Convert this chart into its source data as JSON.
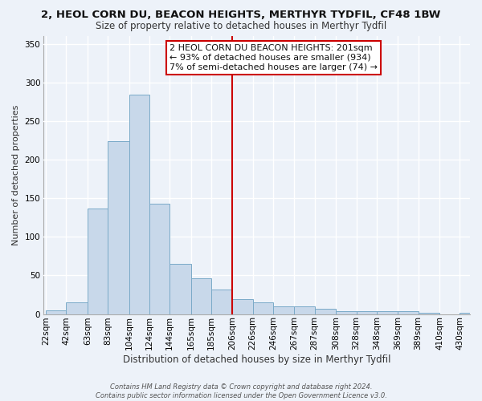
{
  "title": "2, HEOL CORN DU, BEACON HEIGHTS, MERTHYR TYDFIL, CF48 1BW",
  "subtitle": "Size of property relative to detached houses in Merthyr Tydfil",
  "xlabel": "Distribution of detached houses by size in Merthyr Tydfil",
  "ylabel": "Number of detached properties",
  "bin_labels": [
    "22sqm",
    "42sqm",
    "63sqm",
    "83sqm",
    "104sqm",
    "124sqm",
    "144sqm",
    "165sqm",
    "185sqm",
    "206sqm",
    "226sqm",
    "246sqm",
    "267sqm",
    "287sqm",
    "308sqm",
    "328sqm",
    "348sqm",
    "369sqm",
    "389sqm",
    "410sqm",
    "430sqm"
  ],
  "bar_values": [
    5,
    15,
    137,
    224,
    284,
    143,
    65,
    46,
    32,
    19,
    15,
    10,
    10,
    7,
    4,
    4,
    4,
    4,
    2,
    0,
    2
  ],
  "bar_color": "#c8d8ea",
  "bar_edge_color": "#7aaac8",
  "vline_color": "#cc0000",
  "ylim": [
    0,
    360
  ],
  "yticks": [
    0,
    50,
    100,
    150,
    200,
    250,
    300,
    350
  ],
  "annotation_title": "2 HEOL CORN DU BEACON HEIGHTS: 201sqm",
  "annotation_line1": "← 93% of detached houses are smaller (934)",
  "annotation_line2": "7% of semi-detached houses are larger (74) →",
  "annotation_box_color": "#cc0000",
  "bin_edges": [
    22,
    42,
    63,
    83,
    104,
    124,
    144,
    165,
    185,
    206,
    226,
    246,
    267,
    287,
    308,
    328,
    348,
    369,
    389,
    410,
    430
  ],
  "footer": "Contains HM Land Registry data © Crown copyright and database right 2024.\nContains public sector information licensed under the Open Government Licence v3.0.",
  "background_color": "#edf2f9",
  "grid_color": "#ffffff",
  "title_fontsize": 9.5,
  "subtitle_fontsize": 8.5,
  "xlabel_fontsize": 8.5,
  "ylabel_fontsize": 8.0,
  "tick_fontsize": 7.5,
  "annotation_fontsize": 8.0,
  "footer_fontsize": 6.0
}
